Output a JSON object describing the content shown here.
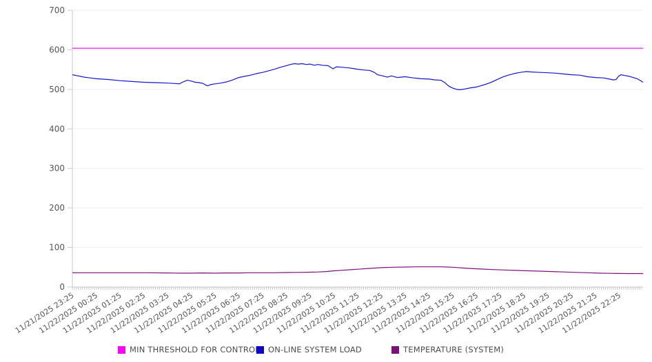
{
  "chart_data": {
    "type": "line",
    "title": "",
    "xlabel": "",
    "ylabel": "",
    "ylim": [
      0,
      700
    ],
    "y_ticks": [
      0,
      100,
      200,
      300,
      400,
      500,
      600,
      700
    ],
    "grid": "horizontal-light",
    "legend_position": "bottom",
    "x_minor_tick_interval_minutes": 5,
    "x_range_minutes": [
      0,
      1440
    ],
    "x_labels": [
      {
        "t": 0,
        "label": "11/21/2025 23:25"
      },
      {
        "t": 60,
        "label": "11/22/2025 00:25"
      },
      {
        "t": 120,
        "label": "11/22/2025 01:25"
      },
      {
        "t": 180,
        "label": "11/22/2025 02:25"
      },
      {
        "t": 240,
        "label": "11/22/2025 03:25"
      },
      {
        "t": 300,
        "label": "11/22/2025 04:25"
      },
      {
        "t": 360,
        "label": "11/22/2025 05:25"
      },
      {
        "t": 420,
        "label": "11/22/2025 06:25"
      },
      {
        "t": 480,
        "label": "11/22/2025 07:25"
      },
      {
        "t": 540,
        "label": "11/22/2025 08:25"
      },
      {
        "t": 600,
        "label": "11/22/2025 09:25"
      },
      {
        "t": 660,
        "label": "11/22/2025 10:25"
      },
      {
        "t": 720,
        "label": "11/22/2025 11:25"
      },
      {
        "t": 780,
        "label": "11/22/2025 12:25"
      },
      {
        "t": 840,
        "label": "11/22/2025 13:25"
      },
      {
        "t": 900,
        "label": "11/22/2025 14:25"
      },
      {
        "t": 960,
        "label": "11/22/2025 15:25"
      },
      {
        "t": 1020,
        "label": "11/22/2025 16:25"
      },
      {
        "t": 1080,
        "label": "11/22/2025 17:25"
      },
      {
        "t": 1140,
        "label": "11/22/2025 18:25"
      },
      {
        "t": 1200,
        "label": "11/22/2025 19:25"
      },
      {
        "t": 1260,
        "label": "11/22/2025 20:25"
      },
      {
        "t": 1320,
        "label": "11/22/2025 21:25"
      },
      {
        "t": 1380,
        "label": "11/22/2025 22:25"
      }
    ],
    "series": [
      {
        "name": "MIN THRESHOLD FOR CONTROL",
        "color": "#ee14ee",
        "points": [
          [
            0,
            604
          ],
          [
            1440,
            604
          ]
        ]
      },
      {
        "name": "ON-LINE SYSTEM LOAD",
        "color": "#1414cd",
        "points": [
          [
            0,
            537
          ],
          [
            15,
            534
          ],
          [
            30,
            531
          ],
          [
            45,
            529
          ],
          [
            60,
            527
          ],
          [
            90,
            525
          ],
          [
            120,
            522
          ],
          [
            150,
            520
          ],
          [
            180,
            518
          ],
          [
            210,
            517
          ],
          [
            240,
            516
          ],
          [
            255,
            515
          ],
          [
            270,
            514
          ],
          [
            280,
            519
          ],
          [
            290,
            523
          ],
          [
            300,
            521
          ],
          [
            310,
            518
          ],
          [
            320,
            517
          ],
          [
            330,
            515
          ],
          [
            336,
            511
          ],
          [
            342,
            509
          ],
          [
            348,
            512
          ],
          [
            360,
            514
          ],
          [
            375,
            516
          ],
          [
            390,
            519
          ],
          [
            405,
            524
          ],
          [
            420,
            530
          ],
          [
            435,
            533
          ],
          [
            450,
            536
          ],
          [
            465,
            540
          ],
          [
            480,
            543
          ],
          [
            495,
            547
          ],
          [
            510,
            551
          ],
          [
            525,
            556
          ],
          [
            540,
            560
          ],
          [
            550,
            563
          ],
          [
            560,
            565
          ],
          [
            570,
            564
          ],
          [
            580,
            565
          ],
          [
            590,
            563
          ],
          [
            600,
            564
          ],
          [
            610,
            561
          ],
          [
            620,
            563
          ],
          [
            630,
            561
          ],
          [
            645,
            560
          ],
          [
            658,
            552
          ],
          [
            666,
            557
          ],
          [
            680,
            556
          ],
          [
            700,
            554
          ],
          [
            720,
            551
          ],
          [
            735,
            549
          ],
          [
            750,
            548
          ],
          [
            762,
            543
          ],
          [
            770,
            537
          ],
          [
            780,
            535
          ],
          [
            795,
            531
          ],
          [
            805,
            534
          ],
          [
            820,
            530
          ],
          [
            840,
            532
          ],
          [
            860,
            529
          ],
          [
            880,
            527
          ],
          [
            900,
            526
          ],
          [
            915,
            524
          ],
          [
            930,
            523
          ],
          [
            940,
            517
          ],
          [
            950,
            508
          ],
          [
            960,
            503
          ],
          [
            970,
            500
          ],
          [
            980,
            499
          ],
          [
            990,
            501
          ],
          [
            1005,
            504
          ],
          [
            1020,
            506
          ],
          [
            1040,
            512
          ],
          [
            1055,
            517
          ],
          [
            1070,
            524
          ],
          [
            1085,
            531
          ],
          [
            1100,
            536
          ],
          [
            1115,
            540
          ],
          [
            1130,
            543
          ],
          [
            1145,
            545
          ],
          [
            1160,
            544
          ],
          [
            1180,
            543
          ],
          [
            1200,
            542
          ],
          [
            1220,
            541
          ],
          [
            1240,
            539
          ],
          [
            1260,
            537
          ],
          [
            1280,
            536
          ],
          [
            1300,
            532
          ],
          [
            1320,
            530
          ],
          [
            1340,
            529
          ],
          [
            1355,
            526
          ],
          [
            1365,
            524
          ],
          [
            1372,
            525
          ],
          [
            1378,
            533
          ],
          [
            1384,
            537
          ],
          [
            1395,
            535
          ],
          [
            1405,
            533
          ],
          [
            1415,
            530
          ],
          [
            1425,
            527
          ],
          [
            1432,
            523
          ],
          [
            1440,
            518
          ]
        ]
      },
      {
        "name": "TEMPERATURE (SYSTEM)",
        "color": "#7b0f7b",
        "points": [
          [
            0,
            36
          ],
          [
            60,
            36
          ],
          [
            120,
            36
          ],
          [
            180,
            36
          ],
          [
            240,
            35.5
          ],
          [
            270,
            35
          ],
          [
            300,
            35
          ],
          [
            330,
            35.5
          ],
          [
            360,
            35
          ],
          [
            390,
            35.5
          ],
          [
            420,
            35.5
          ],
          [
            450,
            36
          ],
          [
            480,
            36
          ],
          [
            510,
            36
          ],
          [
            540,
            36.5
          ],
          [
            570,
            37
          ],
          [
            600,
            37.5
          ],
          [
            620,
            38
          ],
          [
            640,
            39
          ],
          [
            660,
            41
          ],
          [
            690,
            43
          ],
          [
            720,
            45
          ],
          [
            750,
            47
          ],
          [
            780,
            49
          ],
          [
            810,
            50
          ],
          [
            840,
            50.5
          ],
          [
            870,
            51
          ],
          [
            900,
            51
          ],
          [
            930,
            51
          ],
          [
            945,
            50.5
          ],
          [
            960,
            50
          ],
          [
            1000,
            47
          ],
          [
            1030,
            45.5
          ],
          [
            1060,
            44
          ],
          [
            1090,
            43
          ],
          [
            1120,
            42
          ],
          [
            1150,
            41
          ],
          [
            1180,
            40
          ],
          [
            1210,
            39
          ],
          [
            1240,
            38
          ],
          [
            1270,
            37
          ],
          [
            1300,
            36
          ],
          [
            1330,
            35
          ],
          [
            1360,
            34.5
          ],
          [
            1400,
            34
          ],
          [
            1440,
            34
          ]
        ]
      }
    ],
    "colors": {
      "axis_line": "#c8c8c8",
      "grid_line": "#ededed",
      "minor_tick": "#aaaaaa",
      "tick_label": "#555555",
      "legend_text": "#4d4d4d"
    }
  },
  "legend": {
    "items": [
      {
        "label": "MIN THRESHOLD FOR CONTROL"
      },
      {
        "label": "ON-LINE SYSTEM LOAD"
      },
      {
        "label": "TEMPERATURE (SYSTEM)"
      }
    ]
  }
}
